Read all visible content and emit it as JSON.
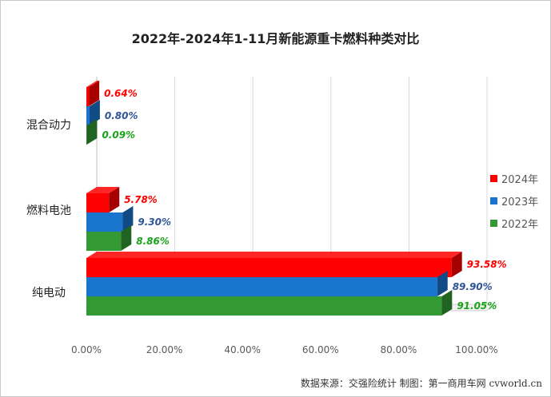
{
  "chart_data": {
    "type": "bar",
    "orientation": "horizontal",
    "title": "2022年-2024年1-11月新能源重卡燃料种类对比",
    "categories": [
      "混合动力",
      "燃料电池",
      "纯电动"
    ],
    "series": [
      {
        "name": "2024年",
        "color": "#ff0000",
        "label_color": "#ff0000",
        "values": [
          0.64,
          5.78,
          93.58
        ],
        "labels": [
          "0.64%",
          "5.78%",
          "93.58%"
        ]
      },
      {
        "name": "2023年",
        "color": "#1874cd",
        "label_color": "#2f5597",
        "values": [
          0.8,
          9.3,
          89.9
        ],
        "labels": [
          "0.80%",
          "9.30%",
          "89.90%"
        ]
      },
      {
        "name": "2022年",
        "color": "#339933",
        "label_color": "#1aa31a",
        "values": [
          0.09,
          8.86,
          91.05
        ],
        "labels": [
          "0.09%",
          "8.86%",
          "91.05%"
        ]
      }
    ],
    "xlim": [
      0,
      100
    ],
    "x_ticks": [
      "0.00%",
      "20.00%",
      "40.00%",
      "60.00%",
      "80.00%",
      "100.00%"
    ],
    "grid": true,
    "legend_position": "right"
  },
  "source_note": "数据来源：交强险统计  制图：第一商用车网 cvworld.cn"
}
